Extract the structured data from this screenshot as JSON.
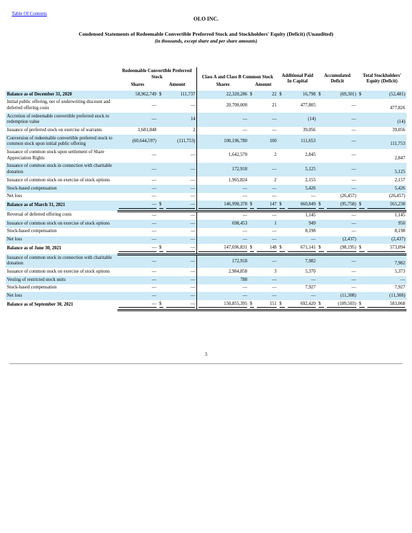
{
  "page": {
    "toc_link": "Table Of Contents",
    "company": "OLO INC.",
    "title": "Condensed Statements of Redeemable Convertible Preferred Stock and Stockholders' Equity (Deficit) (Unaudited)",
    "subtitle": "(in thousands, except share and per share amounts)",
    "page_number": "3"
  },
  "colors": {
    "row_shade": "#cdeaf6",
    "link": "#0000ee",
    "footer_rule": "#9a9a9a"
  },
  "table": {
    "currency_symbol": "$",
    "groups": {
      "preferred": "Redeemable Convertible Preferred Stock",
      "common": "Class A and Class B Common Stock",
      "apic": "Additional Paid In Capital",
      "accumulated_deficit": "Accumulated Deficit",
      "total_equity": "Total Stockholders' Equity (Deficit)"
    },
    "subheaders": {
      "preferred_shares": "Shares",
      "preferred_amount": "Amount",
      "common_shares": "Shares",
      "common_amount": "Amount"
    },
    "column_order": [
      "preferred_shares",
      "preferred_amount",
      "common_shares",
      "common_amount",
      "additional_paid_in_capital",
      "accumulated_deficit",
      "total_stockholders_equity"
    ],
    "rows": [
      {
        "label": "Balance as of December 31, 2020",
        "bold": true,
        "shaded": true,
        "balance": false,
        "dollars": true,
        "values": [
          "58,962,749",
          "111,737",
          "22,320,286",
          "22",
          "16,798",
          "(69,301)",
          "(52,481)"
        ]
      },
      {
        "label": "Initial public offering, net of underwriting discount and deferred offering costs",
        "bold": false,
        "shaded": false,
        "balance": false,
        "dollars": false,
        "values": [
          "—",
          "—",
          "20,700,000",
          "21",
          "477,805",
          "—",
          "477,826"
        ]
      },
      {
        "label": "Accretion of redeemable convertible preferred stock to redemption value",
        "bold": false,
        "shaded": true,
        "balance": false,
        "dollars": false,
        "values": [
          "—",
          "14",
          "—",
          "—",
          "(14)",
          "—",
          "(14)"
        ]
      },
      {
        "label": "Issuance of preferred stock on exercise of warrants",
        "bold": false,
        "shaded": false,
        "balance": false,
        "dollars": false,
        "values": [
          "1,681,848",
          "2",
          "—",
          "—",
          "39,056",
          "—",
          "39,056"
        ]
      },
      {
        "label": "Conversion of redeemable convertible preferred stock to common stock upon initial public offering",
        "bold": false,
        "shaded": true,
        "balance": false,
        "dollars": false,
        "values": [
          "(60,644,597)",
          "(111,753)",
          "100,196,780",
          "100",
          "111,653",
          "—",
          "111,753"
        ]
      },
      {
        "label": "Issuance of common stock upon settlement of Share Appreciation Rights",
        "bold": false,
        "shaded": false,
        "balance": false,
        "dollars": false,
        "values": [
          "—",
          "—",
          "1,642,570",
          "2",
          "2,845",
          "—",
          "2,847"
        ]
      },
      {
        "label": "Issuance of common stock in connection with charitable donation",
        "bold": false,
        "shaded": true,
        "balance": false,
        "dollars": false,
        "values": [
          "—",
          "—",
          "172,918",
          "—",
          "5,125",
          "—",
          "5,125"
        ]
      },
      {
        "label": "Issuance of common stock on exercise of stock options",
        "bold": false,
        "shaded": false,
        "balance": false,
        "dollars": false,
        "values": [
          "—",
          "—",
          "1,965,824",
          "2",
          "2,155",
          "—",
          "2,157"
        ]
      },
      {
        "label": "Stock-based compensation",
        "bold": false,
        "shaded": true,
        "balance": false,
        "dollars": false,
        "values": [
          "—",
          "—",
          "—",
          "—",
          "5,426",
          "—",
          "5,426"
        ]
      },
      {
        "label": "Net loss",
        "bold": false,
        "shaded": false,
        "balance": false,
        "dollars": false,
        "values": [
          "—",
          "—",
          "—",
          "—",
          "—",
          "(26,457)",
          "(26,457)"
        ]
      },
      {
        "label": "Balance as of March 31, 2021",
        "bold": true,
        "shaded": true,
        "balance": true,
        "dollars": true,
        "values": [
          "—",
          "—",
          "146,998,378",
          "147",
          "660,849",
          "(95,758)",
          "565,238"
        ]
      },
      {
        "label": "Reversal of deferred offering costs",
        "bold": false,
        "shaded": false,
        "balance": false,
        "dollars": false,
        "values": [
          "—",
          "—",
          "—",
          "—",
          "1,145",
          "—",
          "1,145"
        ]
      },
      {
        "label": "Issuance of common stock on exercise of stock options",
        "bold": false,
        "shaded": true,
        "balance": false,
        "dollars": false,
        "values": [
          "—",
          "—",
          "698,453",
          "1",
          "949",
          "—",
          "950"
        ]
      },
      {
        "label": "Stock-based compensation",
        "bold": false,
        "shaded": false,
        "balance": false,
        "dollars": false,
        "values": [
          "—",
          "—",
          "—",
          "—",
          "8,198",
          "—",
          "8,198"
        ]
      },
      {
        "label": "Net loss",
        "bold": false,
        "shaded": true,
        "balance": false,
        "dollars": false,
        "values": [
          "—",
          "—",
          "—",
          "—",
          "—",
          "(2,437)",
          "(2,437)"
        ]
      },
      {
        "label": "Balance as of June 30, 2021",
        "bold": true,
        "shaded": false,
        "balance": true,
        "dollars": true,
        "values": [
          "—",
          "—",
          "147,696,831",
          "148",
          "671,141",
          "(98,195)",
          "573,094"
        ]
      },
      {
        "label": "Issuance of common stock in connection with charitable donation",
        "bold": false,
        "shaded": true,
        "balance": false,
        "dollars": false,
        "values": [
          "—",
          "—",
          "172,918",
          "—",
          "7,982",
          "—",
          "7,982"
        ]
      },
      {
        "label": "Issuance of common stock on exercise of stock options",
        "bold": false,
        "shaded": false,
        "balance": false,
        "dollars": false,
        "values": [
          "—",
          "—",
          "2,984,858",
          "3",
          "5,370",
          "—",
          "5,373"
        ]
      },
      {
        "label": "Vesting of restricted stock units",
        "bold": false,
        "shaded": true,
        "balance": false,
        "dollars": false,
        "values": [
          "—",
          "—",
          "788",
          "—",
          "—",
          "—",
          "—"
        ]
      },
      {
        "label": "Stock-based compensation",
        "bold": false,
        "shaded": false,
        "balance": false,
        "dollars": false,
        "values": [
          "—",
          "—",
          "—",
          "—",
          "7,927",
          "—",
          "7,927"
        ]
      },
      {
        "label": "Net loss",
        "bold": false,
        "shaded": true,
        "balance": false,
        "dollars": false,
        "values": [
          "—",
          "—",
          "—",
          "—",
          "—",
          "(11,308)",
          "(11,308)"
        ]
      },
      {
        "label": "Balance as of September 30, 2021",
        "bold": true,
        "shaded": false,
        "balance": true,
        "dollars": true,
        "values": [
          "—",
          "—",
          "150,855,395",
          "151",
          "692,420",
          "(109,503)",
          "583,068"
        ]
      }
    ]
  }
}
